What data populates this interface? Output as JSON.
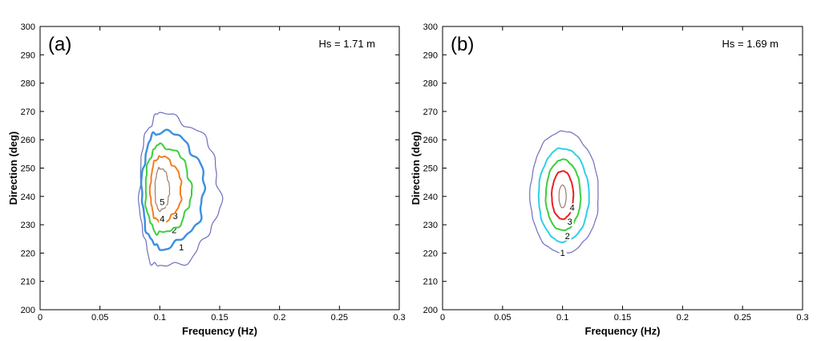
{
  "chart_data": [
    {
      "type": "contour",
      "panel_label": "(a)",
      "annotation": "Hs = 1.71 m",
      "xlabel": "Frequency (Hz)",
      "ylabel": "Direction (deg)",
      "xlim": [
        0,
        0.3
      ],
      "ylim": [
        200,
        300
      ],
      "xticks": [
        "0",
        "0.05",
        "0.1",
        "0.15",
        "0.2",
        "0.25",
        "0.3"
      ],
      "yticks": [
        "200",
        "210",
        "220",
        "230",
        "240",
        "250",
        "260",
        "270",
        "280",
        "290",
        "300"
      ],
      "grid": false,
      "peak": {
        "x": 0.1,
        "y": 242
      },
      "contours": [
        {
          "level": "1",
          "color": "#6f6fbf",
          "width": 1.2,
          "fmin": 0.083,
          "fmax": 0.15,
          "dmin": 215,
          "dmax": 269,
          "label_at": {
            "x": 0.118,
            "y": 221
          }
        },
        {
          "level": "2",
          "color": "#3c8fe0",
          "width": 2.4,
          "fmin": 0.085,
          "fmax": 0.137,
          "dmin": 222,
          "dmax": 263,
          "label_at": {
            "x": 0.112,
            "y": 227
          }
        },
        {
          "level": "3",
          "color": "#3ccf3c",
          "width": 2.0,
          "fmin": 0.088,
          "fmax": 0.126,
          "dmin": 227,
          "dmax": 258,
          "label_at": {
            "x": 0.113,
            "y": 232
          }
        },
        {
          "level": "4",
          "color": "#f07f20",
          "width": 2.0,
          "fmin": 0.092,
          "fmax": 0.118,
          "dmin": 231,
          "dmax": 254,
          "label_at": {
            "x": 0.102,
            "y": 231
          }
        },
        {
          "level": "5",
          "color": "#9e7a6e",
          "width": 1.2,
          "fmin": 0.096,
          "fmax": 0.108,
          "dmin": 235,
          "dmax": 250,
          "label_at": {
            "x": 0.102,
            "y": 237
          }
        }
      ]
    },
    {
      "type": "contour",
      "panel_label": "(b)",
      "annotation": "Hs = 1.69 m",
      "xlabel": "Frequency (Hz)",
      "ylabel": "Direction (deg)",
      "xlim": [
        0,
        0.3
      ],
      "ylim": [
        200,
        300
      ],
      "xticks": [
        "0",
        "0.05",
        "0.1",
        "0.15",
        "0.2",
        "0.25",
        "0.3"
      ],
      "yticks": [
        "200",
        "210",
        "220",
        "230",
        "240",
        "250",
        "260",
        "270",
        "280",
        "290",
        "300"
      ],
      "grid": false,
      "peak": {
        "x": 0.1,
        "y": 240
      },
      "contours": [
        {
          "level": "1",
          "color": "#6f6fbf",
          "width": 1.2,
          "fmin": 0.073,
          "fmax": 0.13,
          "dmin": 220,
          "dmax": 263,
          "label_at": {
            "x": 0.1,
            "y": 219
          }
        },
        {
          "level": "2",
          "color": "#2fd0e6",
          "width": 2.0,
          "fmin": 0.08,
          "fmax": 0.122,
          "dmin": 224,
          "dmax": 257,
          "label_at": {
            "x": 0.104,
            "y": 225
          }
        },
        {
          "level": "3",
          "color": "#3ccf3c",
          "width": 2.0,
          "fmin": 0.086,
          "fmax": 0.115,
          "dmin": 228,
          "dmax": 253,
          "label_at": {
            "x": 0.106,
            "y": 230
          }
        },
        {
          "level": "4",
          "color": "#e82020",
          "width": 2.0,
          "fmin": 0.091,
          "fmax": 0.109,
          "dmin": 232,
          "dmax": 249,
          "label_at": {
            "x": 0.108,
            "y": 235
          }
        },
        {
          "level": "",
          "color": "#9e7a6e",
          "width": 1.2,
          "fmin": 0.097,
          "fmax": 0.103,
          "dmin": 236,
          "dmax": 244
        }
      ]
    }
  ]
}
